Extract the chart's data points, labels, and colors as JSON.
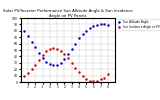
{
  "title": "Solar PV/Inverter Performance Sun Altitude Angle & Sun Incidence Angle on PV Panels",
  "blue_label": "Sun Altitude Angle",
  "red_label": "Sun Incidence Angle on PV Panels",
  "x_times": [
    -3.5,
    -3.0,
    -2.5,
    -2.0,
    -1.5,
    -1.0,
    -0.5,
    0.0,
    0.5,
    1.0,
    1.5,
    2.0,
    2.5,
    3.0,
    3.5,
    4.0,
    4.5,
    5.0,
    5.5,
    6.0,
    6.5,
    7.0,
    7.5,
    8.0
  ],
  "blue_y": [
    80,
    72,
    63,
    54,
    45,
    38,
    32,
    28,
    26,
    27,
    30,
    36,
    43,
    51,
    60,
    68,
    75,
    80,
    84,
    87,
    89,
    90,
    90,
    89
  ],
  "red_y": [
    10,
    14,
    20,
    27,
    35,
    42,
    48,
    52,
    53,
    52,
    49,
    44,
    37,
    30,
    22,
    15,
    9,
    5,
    2,
    1,
    2,
    4,
    7,
    12
  ],
  "ylim": [
    0,
    100
  ],
  "xlim": [
    -4,
    9
  ],
  "xticks": [
    -3,
    -2,
    -1,
    0,
    1,
    2,
    3,
    4,
    5,
    6,
    7,
    8
  ],
  "yticks": [
    0,
    10,
    20,
    30,
    40,
    50,
    60,
    70,
    80,
    90,
    100
  ],
  "blue_color": "#0000cc",
  "red_color": "#cc0000",
  "bg_color": "#ffffff",
  "grid_color": "#999999",
  "title_fontsize": 2.8,
  "tick_fontsize": 2.2,
  "marker_size": 1.5,
  "legend_fontsize": 2.0
}
